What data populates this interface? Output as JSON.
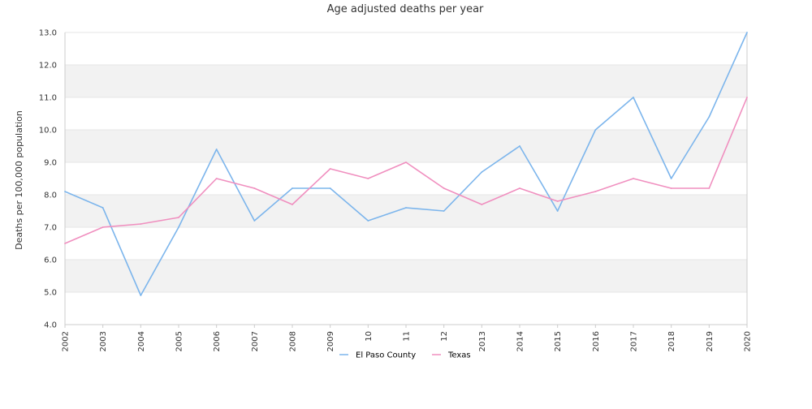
{
  "chart_data": {
    "type": "line",
    "title": "Age adjusted deaths per year",
    "xlabel": "",
    "ylabel": "Deaths per 100,000 population",
    "ylim": [
      4.0,
      13.0
    ],
    "y_ticks": [
      "4.0",
      "5.0",
      "6.0",
      "7.0",
      "8.0",
      "9.0",
      "10.0",
      "11.0",
      "12.0",
      "13.0"
    ],
    "categories": [
      "2002",
      "2003",
      "2004",
      "2005",
      "2006",
      "2007",
      "2008",
      "2009",
      "10",
      "11",
      "12",
      "2013",
      "2014",
      "2015",
      "2016",
      "2017",
      "2018",
      "2019",
      "2020"
    ],
    "series": [
      {
        "name": "El Paso County",
        "color": "#7cb5ec",
        "values": [
          8.1,
          7.6,
          4.9,
          7.0,
          9.4,
          7.2,
          8.2,
          8.2,
          7.2,
          7.6,
          7.5,
          8.7,
          9.5,
          7.5,
          10.0,
          11.0,
          8.5,
          10.4,
          13.0
        ]
      },
      {
        "name": "Texas",
        "color": "#f08fbf",
        "values": [
          6.5,
          7.0,
          7.1,
          7.3,
          8.5,
          8.2,
          7.7,
          8.8,
          8.5,
          9.0,
          8.2,
          7.7,
          8.2,
          7.8,
          8.1,
          8.5,
          8.2,
          8.2,
          11.0
        ]
      }
    ],
    "grid": true,
    "band_color": "#f2f2f2",
    "legend_position": "bottom-center"
  }
}
